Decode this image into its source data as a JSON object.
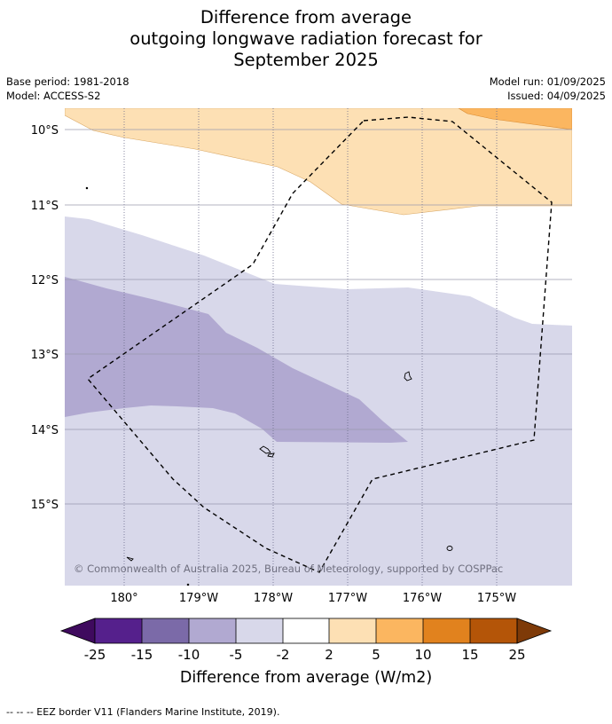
{
  "header": {
    "title_line1": "Difference from average",
    "title_line2": "outgoing longwave radiation forecast for",
    "title_line3": "September 2025",
    "base_period": "Base period: 1981-2018",
    "model": "Model: ACCESS-S2",
    "model_run": "Model run: 01/09/2025",
    "issued": "Issued: 04/09/2025"
  },
  "map": {
    "lat_labels": [
      "10°S",
      "11°S",
      "12°S",
      "13°S",
      "14°S",
      "15°S"
    ],
    "lon_labels": [
      "180°",
      "179°W",
      "178°W",
      "177°W",
      "176°W",
      "175°W"
    ],
    "copyright": "© Commonwealth of Australia 2025, Bureau of Meteorology, supported by COSPPac",
    "border_style": "dashed"
  },
  "colorbar": {
    "tick_labels": [
      "-25",
      "-15",
      "-10",
      "-5",
      "-2",
      "2",
      "5",
      "10",
      "15",
      "25"
    ],
    "colors": [
      "#3f0a5e",
      "#55208c",
      "#7b6aa8",
      "#b1a9d1",
      "#d8d8ea",
      "#ffffff",
      "#fde0b4",
      "#fbb660",
      "#e1821e",
      "#b45508",
      "#7e3a08"
    ],
    "label": "Difference from average (W/m2)"
  },
  "footnote": "--  --  -- EEZ border V11 (Flanders Marine Institute, 2019)."
}
